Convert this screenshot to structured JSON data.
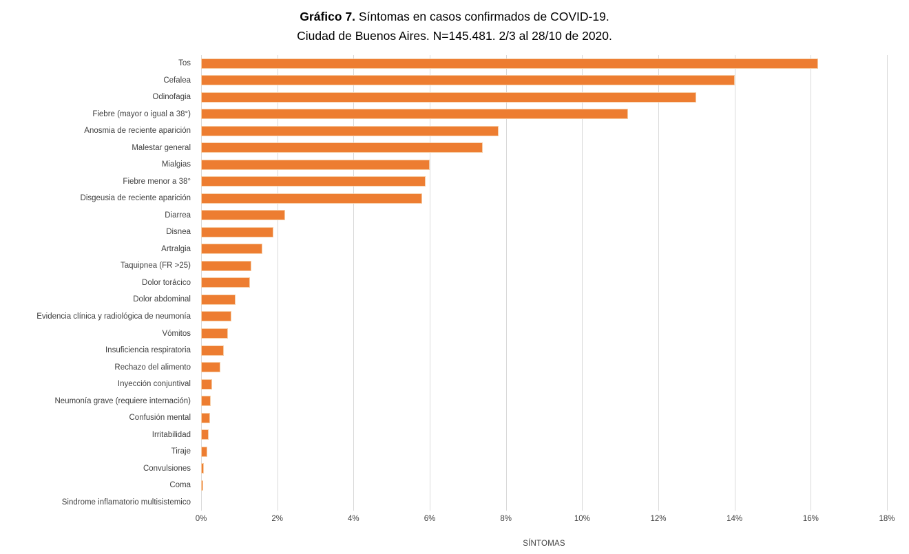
{
  "title": {
    "prefix": "Gráfico 7.",
    "line1_rest": " Síntomas en casos confirmados de COVID-19.",
    "line2": "Ciudad de Buenos Aires. N=145.481. 2/3 al 28/10 de 2020."
  },
  "chart_data": {
    "type": "bar",
    "orientation": "horizontal",
    "title": "Gráfico 7. Síntomas en casos confirmados de COVID-19. Ciudad de Buenos Aires. N=145.481. 2/3 al 28/10 de 2020.",
    "xlabel": "SÍNTOMAS",
    "ylabel": "",
    "xlim": [
      0,
      18
    ],
    "x_ticks": [
      "0%",
      "2%",
      "4%",
      "6%",
      "8%",
      "10%",
      "12%",
      "14%",
      "16%",
      "18%"
    ],
    "x_tick_values": [
      0,
      2,
      4,
      6,
      8,
      10,
      12,
      14,
      16,
      18
    ],
    "grid": true,
    "legend": false,
    "bar_color": "#ED7D31",
    "gridline_color": "#D9D9D9",
    "categories": [
      "Tos",
      "Cefalea",
      "Odinofagia",
      "Fiebre (mayor o igual a 38°)",
      "Anosmia de reciente aparición",
      "Malestar general",
      "Mialgias",
      "Fiebre menor a 38°",
      "Disgeusia de reciente aparición",
      "Diarrea",
      "Disnea",
      "Artralgia",
      "Taquipnea (FR >25)",
      "Dolor torácico",
      "Dolor abdominal",
      "Evidencia clínica y radiológica de neumonía",
      "Vómitos",
      "Insuficiencia respiratoria",
      "Rechazo del alimento",
      "Inyección conjuntival",
      "Neumonía grave (requiere internación)",
      "Confusión mental",
      "Irritabilidad",
      "Tiraje",
      "Convulsiones",
      "Coma",
      "Sindrome inflamatorio multisistemico"
    ],
    "values": [
      16.2,
      14.0,
      13.0,
      11.2,
      7.8,
      7.4,
      6.0,
      5.9,
      5.8,
      2.2,
      1.9,
      1.6,
      1.32,
      1.28,
      0.9,
      0.8,
      0.7,
      0.6,
      0.5,
      0.29,
      0.26,
      0.23,
      0.19,
      0.17,
      0.07,
      0.06,
      0
    ]
  }
}
